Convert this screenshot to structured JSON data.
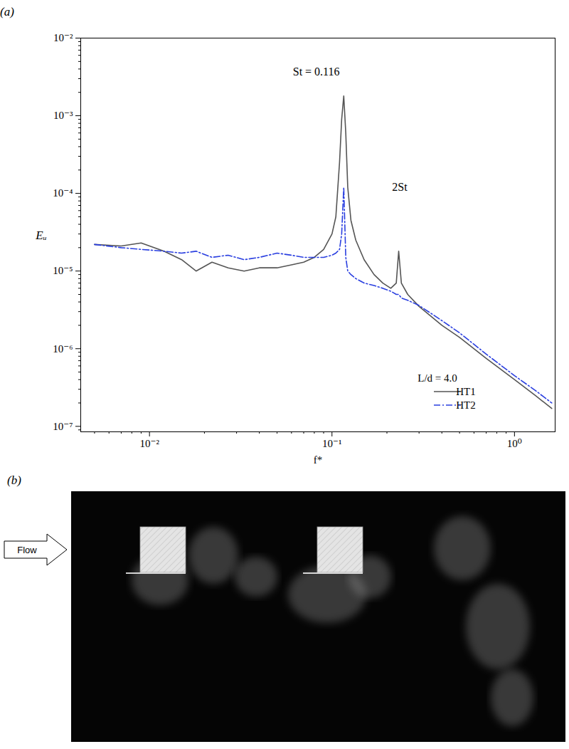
{
  "chart_data": {
    "type": "line",
    "panel_label": "(a)",
    "x_label": "f*",
    "y_label": "Eᵤ",
    "log": true,
    "grid": false,
    "xlim": [
      0.0042,
      1.67
    ],
    "ylim": [
      8.5e-08,
      0.01
    ],
    "xticks": [
      {
        "value": 0.01,
        "label": "10⁻²"
      },
      {
        "value": 0.1,
        "label": "10⁻¹"
      },
      {
        "value": 1,
        "label": "10⁰"
      }
    ],
    "yticks": [
      {
        "value": 1e-07,
        "label": "10⁻⁷"
      },
      {
        "value": 1e-06,
        "label": "10⁻⁶"
      },
      {
        "value": 1e-05,
        "label": "10⁻⁵"
      },
      {
        "value": 0.0001,
        "label": "10⁻⁴"
      },
      {
        "value": 0.001,
        "label": "10⁻³"
      },
      {
        "value": 0.01,
        "label": "10⁻²"
      }
    ],
    "legend": "lower right",
    "legend_title": "L/d = 4.0",
    "x": [
      0.005,
      0.007,
      0.009,
      0.012,
      0.015,
      0.018,
      0.022,
      0.027,
      0.033,
      0.04,
      0.05,
      0.06,
      0.07,
      0.08,
      0.09,
      0.1,
      0.105,
      0.11,
      0.113,
      0.116,
      0.119,
      0.122,
      0.127,
      0.135,
      0.15,
      0.17,
      0.19,
      0.21,
      0.225,
      0.232,
      0.24,
      0.26,
      0.3,
      0.4,
      0.5,
      0.7,
      1.0,
      1.3,
      1.6
    ],
    "series": [
      {
        "name": "HT1",
        "color": "#555555",
        "line_style": "solid",
        "values": [
          2.2e-05,
          2.1e-05,
          2.3e-05,
          1.8e-05,
          1.4e-05,
          1e-05,
          1.3e-05,
          1.1e-05,
          1e-05,
          1.1e-05,
          1.1e-05,
          1.2e-05,
          1.3e-05,
          1.5e-05,
          1.9e-05,
          3e-05,
          5e-05,
          0.00025,
          0.0009,
          0.0018,
          0.0006,
          0.00012,
          4.5e-05,
          2.5e-05,
          1.4e-05,
          9e-06,
          7e-06,
          6e-06,
          7e-06,
          1.8e-05,
          7e-06,
          5e-06,
          3.5e-06,
          2e-06,
          1.4e-06,
          7.5e-07,
          4e-07,
          2.5e-07,
          1.7e-07
        ]
      },
      {
        "name": "HT2",
        "color": "#2a3fe0",
        "line_style": "dashdot",
        "values": [
          2.2e-05,
          2e-05,
          1.9e-05,
          1.8e-05,
          1.7e-05,
          1.8e-05,
          1.5e-05,
          1.6e-05,
          1.4e-05,
          1.5e-05,
          1.7e-05,
          1.6e-05,
          1.5e-05,
          1.5e-05,
          1.5e-05,
          1.6e-05,
          1.7e-05,
          1.9e-05,
          3e-05,
          0.00012,
          1.5e-05,
          1e-05,
          9e-06,
          8e-06,
          7e-06,
          6.5e-06,
          6e-06,
          5.5e-06,
          5e-06,
          5e-06,
          4.5e-06,
          4.2e-06,
          3.6e-06,
          2.3e-06,
          1.6e-06,
          8.5e-07,
          4.5e-07,
          2.9e-07,
          2e-07
        ]
      }
    ],
    "annotations": [
      {
        "text": "St = 0.116",
        "x": 0.082,
        "y": 0.0037
      },
      {
        "text": "2St",
        "x": 0.235,
        "y": 0.00012
      }
    ]
  },
  "image_panel": {
    "label": "(b)",
    "arrow_text": "Flow"
  }
}
